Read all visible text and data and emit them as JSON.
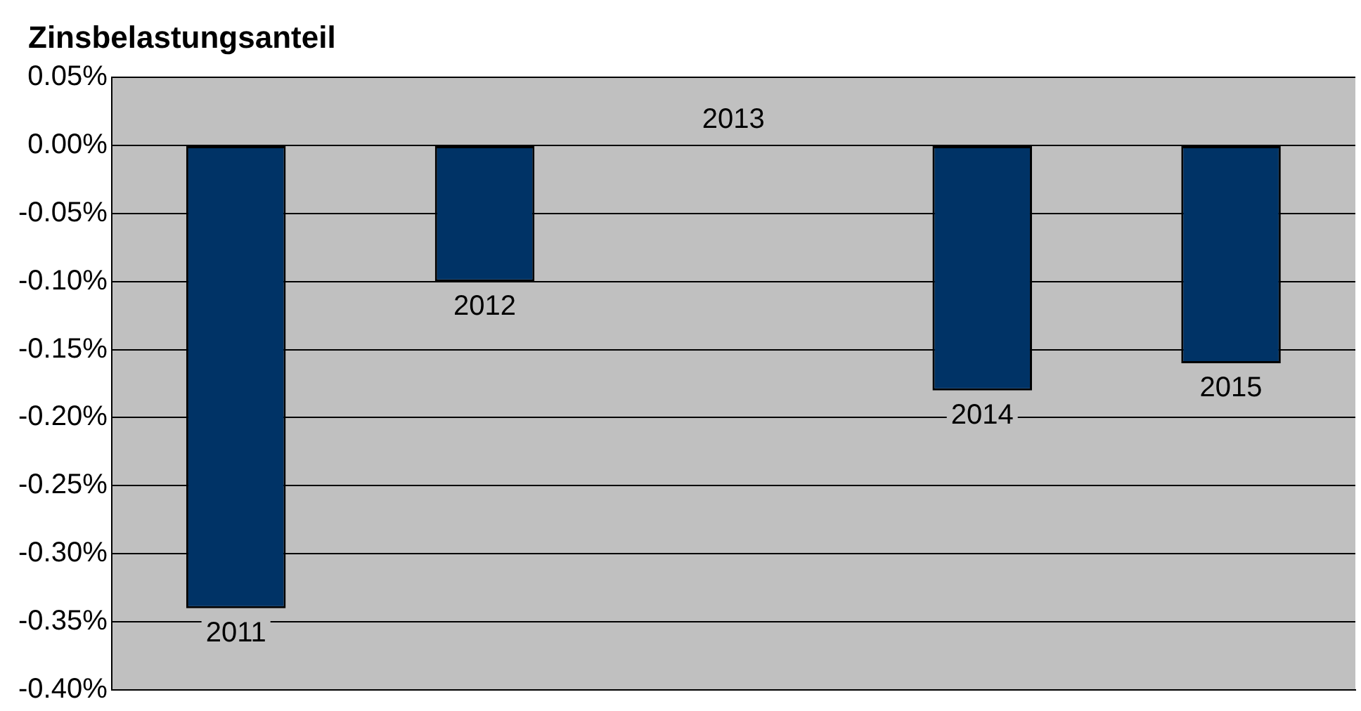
{
  "chart_data": {
    "type": "bar",
    "title": "Zinsbelastungsanteil",
    "categories": [
      "2011",
      "2012",
      "2013",
      "2014",
      "2015"
    ],
    "values": [
      -0.34,
      -0.1,
      0.0,
      -0.18,
      -0.16
    ],
    "color": "#003366",
    "ylim": [
      -0.4,
      0.05
    ],
    "yticks": [
      {
        "value": 0.05,
        "label": "0.05%"
      },
      {
        "value": 0,
        "label": "0.00%"
      },
      {
        "value": -0.05,
        "label": "-0.05%"
      },
      {
        "value": -0.1,
        "label": "-0.10%"
      },
      {
        "value": -0.15,
        "label": "-0.15%"
      },
      {
        "value": -0.2,
        "label": "-0.20%"
      },
      {
        "value": -0.25,
        "label": "-0.25%"
      },
      {
        "value": -0.3,
        "label": "-0.30%"
      },
      {
        "value": -0.35,
        "label": "-0.35%"
      },
      {
        "value": -0.4,
        "label": "-0.40%"
      }
    ],
    "grid": "y"
  }
}
